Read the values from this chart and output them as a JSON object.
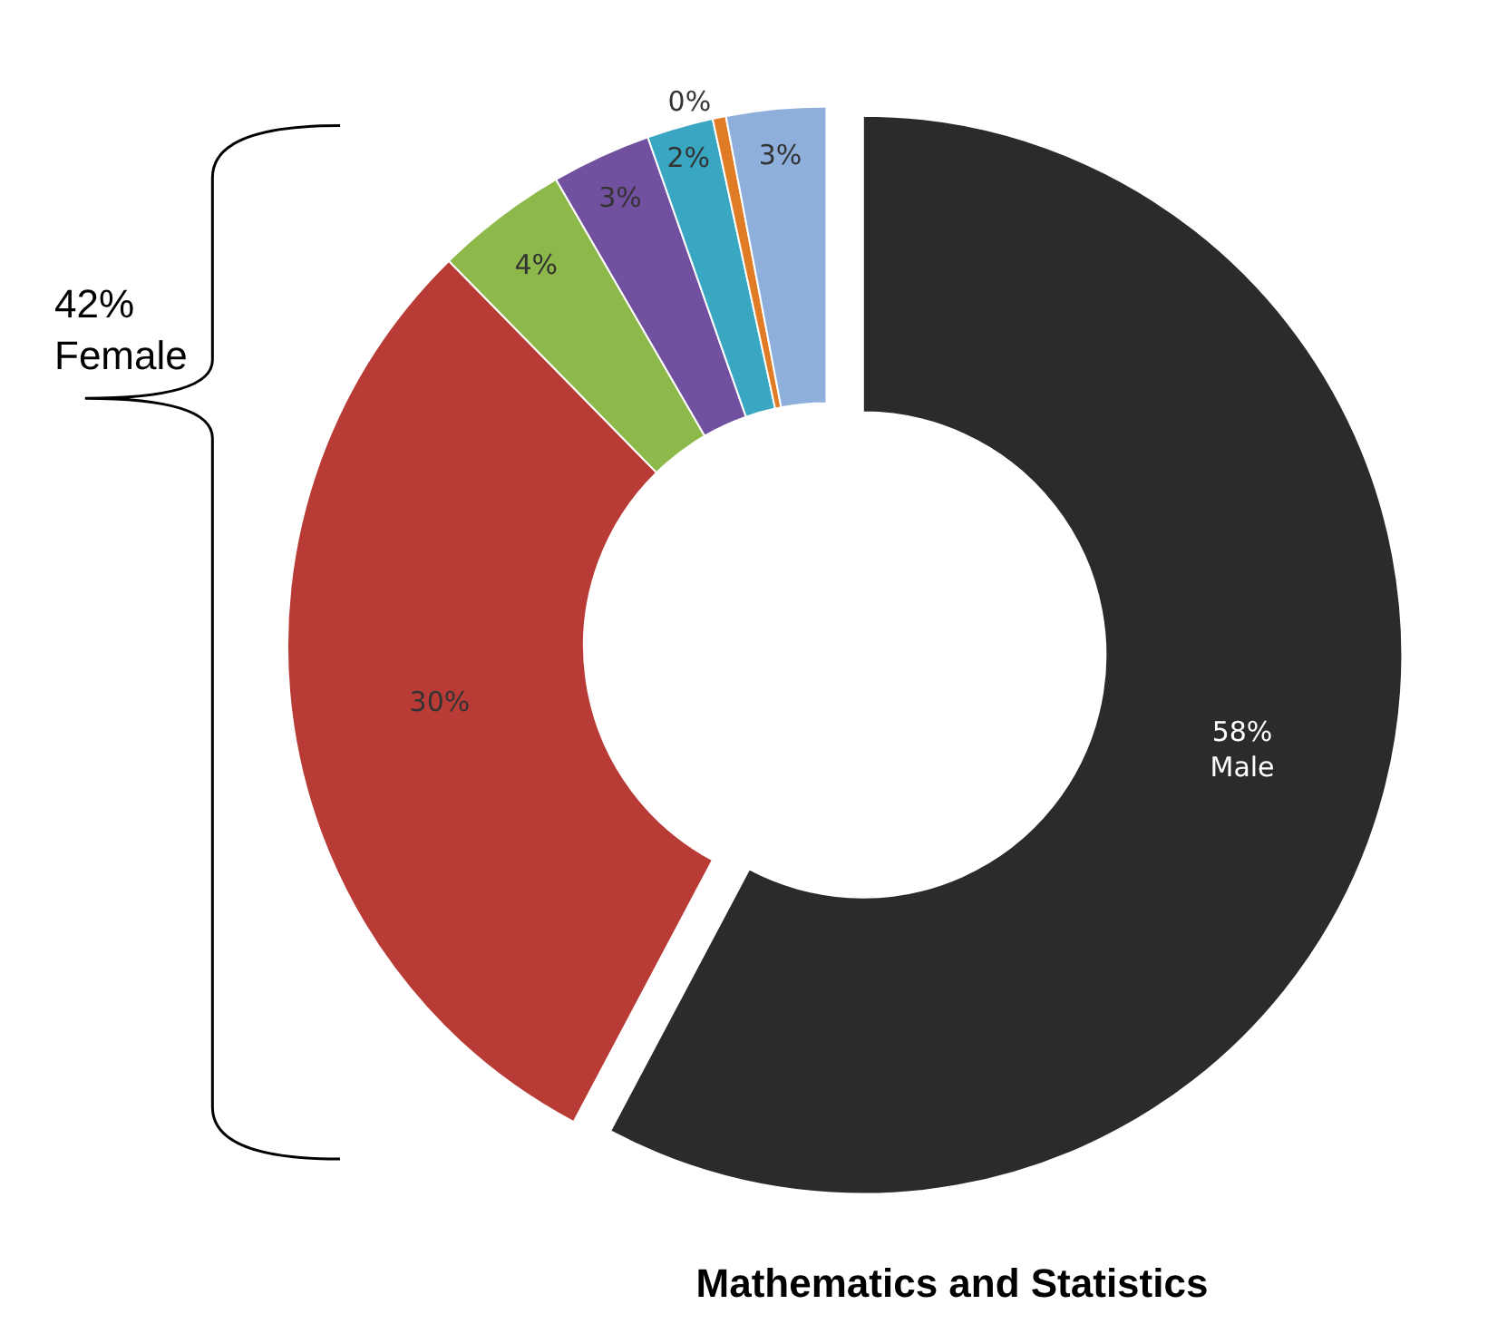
{
  "chart_data": {
    "type": "donut",
    "title": "Mathematics and Statistics",
    "categories": [
      "Male",
      null,
      null,
      null,
      null,
      null,
      null
    ],
    "values": [
      58,
      30,
      4,
      3,
      2,
      0.4,
      3
    ],
    "value_labels": [
      "58%",
      "30%",
      "4%",
      "3%",
      "2%",
      "0%",
      "3%"
    ],
    "colors": [
      "#2b2b2b",
      "#b83b36",
      "#8db84a",
      "#7150a0",
      "#3aa7c2",
      "#e07b26",
      "#8eaedb"
    ],
    "annotations": [
      "42%\nFemale"
    ],
    "legend": false
  }
}
